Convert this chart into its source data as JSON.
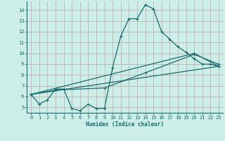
{
  "xlabel": "Humidex (Indice chaleur)",
  "bg_color": "#cceee8",
  "grid_color": "#c4b8b8",
  "line_color": "#1a6b6b",
  "xlim": [
    -0.5,
    23.5
  ],
  "ylim": [
    4.5,
    14.8
  ],
  "xticks": [
    0,
    1,
    2,
    3,
    4,
    5,
    6,
    7,
    8,
    9,
    10,
    11,
    12,
    13,
    14,
    15,
    16,
    17,
    18,
    19,
    20,
    21,
    22,
    23
  ],
  "yticks": [
    5,
    6,
    7,
    8,
    9,
    10,
    11,
    12,
    13,
    14
  ],
  "series1_x": [
    0,
    1,
    2,
    3,
    4,
    5,
    6,
    7,
    8,
    9,
    10,
    11,
    12,
    13,
    14,
    15,
    16,
    17,
    18,
    19,
    20,
    21,
    22,
    23
  ],
  "series1_y": [
    6.2,
    5.3,
    5.7,
    6.7,
    6.7,
    4.9,
    4.7,
    5.3,
    4.9,
    4.9,
    8.7,
    11.6,
    13.2,
    13.2,
    14.5,
    14.1,
    12.0,
    11.3,
    10.6,
    10.1,
    9.5,
    9.0,
    9.0,
    8.8
  ],
  "series2_x": [
    0,
    23
  ],
  "series2_y": [
    6.2,
    8.8
  ],
  "series3_x": [
    0,
    20,
    23
  ],
  "series3_y": [
    6.2,
    10.0,
    8.8
  ],
  "series4_x": [
    0,
    3,
    9,
    14,
    20,
    23
  ],
  "series4_y": [
    6.2,
    6.6,
    6.8,
    8.2,
    9.9,
    9.0
  ]
}
